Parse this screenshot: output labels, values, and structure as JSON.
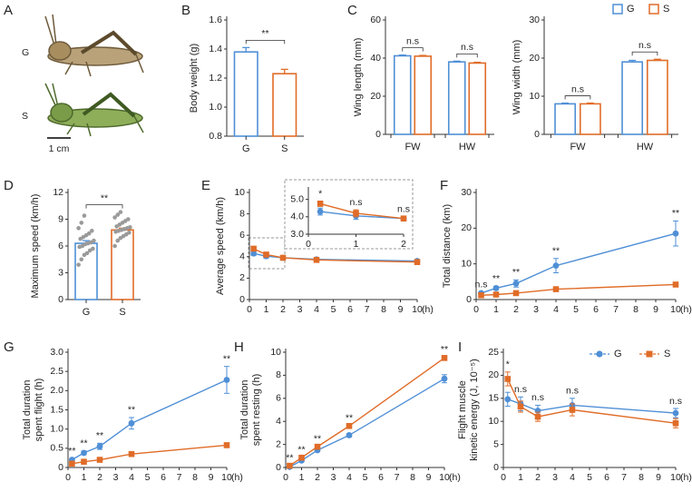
{
  "figure": {
    "panel_a": {
      "label": "A",
      "groups": [
        "G",
        "S"
      ],
      "scale_bar": "1 cm"
    }
  },
  "chart_data": [
    {
      "type": "bar",
      "panel": "B",
      "ylabel": [
        "Body weight (g)"
      ],
      "categories": [
        "G",
        "S"
      ],
      "values": [
        1.38,
        1.23
      ],
      "errors": [
        0.03,
        0.03
      ],
      "colors": [
        "#4f8fd6",
        "#e06c28"
      ],
      "ylim": [
        0.8,
        1.6
      ],
      "yticks": [
        0.8,
        {
          "value": 1,
          "label": "1.0"
        },
        1.2,
        1.4,
        1.6
      ],
      "annotation": "**"
    },
    {
      "type": "bar",
      "panel": "C",
      "ylabel": [
        "Wing length (mm)"
      ],
      "categories": [
        "FW",
        "HW"
      ],
      "series": [
        {
          "color": "#4f8fd6",
          "values": [
            41.2,
            38
          ],
          "errors": [
            0.4,
            0.4
          ]
        },
        {
          "color": "#e06c28",
          "values": [
            41,
            37.4
          ],
          "errors": [
            0.4,
            0.4
          ]
        }
      ],
      "ylim": [
        0,
        60
      ],
      "yticks": [
        0,
        20,
        40,
        60
      ],
      "annotations": [
        "n.s",
        "n.s"
      ]
    },
    {
      "type": "bar",
      "ylabel": [
        "Wing width (mm)"
      ],
      "categories": [
        "FW",
        "HW"
      ],
      "series": [
        {
          "name": "G",
          "color": "#4f8fd6",
          "values": [
            8,
            19
          ],
          "errors": [
            0.2,
            0.4
          ]
        },
        {
          "name": "S",
          "color": "#e06c28",
          "values": [
            8,
            19.4
          ],
          "errors": [
            0.2,
            0.3
          ]
        }
      ],
      "ylim": [
        0,
        30
      ],
      "yticks": [
        0,
        10,
        20,
        30
      ],
      "annotations": [
        "n.s",
        "n.s"
      ],
      "legend": "top-right"
    },
    {
      "type": "bar",
      "panel": "D",
      "ylabel": [
        "Maximum speed (km/h)"
      ],
      "categories": [
        "G",
        "S"
      ],
      "values": [
        6.3,
        7.8
      ],
      "errors": [
        0.3,
        0.2
      ],
      "colors": [
        "#4f8fd6",
        "#e06c28"
      ],
      "ylim": [
        0,
        12
      ],
      "yticks": [
        0,
        3,
        6,
        9,
        12
      ],
      "annotation": "**",
      "points": [
        [
          3.9,
          4.5,
          5.0,
          5.2,
          5.5,
          5.7,
          5.9,
          6.0,
          6.2,
          6.3,
          6.4,
          6.6,
          6.8,
          7.0,
          7.2,
          7.4,
          7.7,
          8.0,
          8.6,
          9.4
        ],
        [
          6.0,
          6.6,
          6.9,
          7.1,
          7.3,
          7.5,
          7.6,
          7.7,
          7.8,
          7.9,
          8.0,
          8.1,
          8.2,
          8.4,
          8.6,
          8.8,
          9.0,
          9.2,
          9.5,
          9.8
        ]
      ]
    },
    {
      "type": "line",
      "panel": "E",
      "ylabel": [
        "Average speed (km/h)"
      ],
      "x": [
        0.25,
        1,
        2,
        4,
        10
      ],
      "xlim": [
        0,
        10
      ],
      "xticks": [
        0,
        1,
        2,
        3,
        4,
        5,
        6,
        7,
        8,
        9,
        10
      ],
      "xunit": "(h)",
      "ylim": [
        0,
        10
      ],
      "yticks": [
        0,
        2,
        4,
        6,
        8,
        10
      ],
      "series": [
        {
          "color": "#4f8fd6",
          "marker": "circle",
          "values": [
            4.3,
            4.05,
            3.9,
            3.75,
            3.6
          ],
          "errors": [
            0.2,
            0.2,
            0.1,
            0.15,
            0.1
          ]
        },
        {
          "color": "#e06c28",
          "marker": "square",
          "values": [
            4.75,
            4.2,
            3.9,
            3.7,
            3.5
          ],
          "errors": [
            0.15,
            0.2,
            0.1,
            0.1,
            0.1
          ]
        }
      ]
    },
    {
      "type": "line",
      "x": [
        0.25,
        1,
        2
      ],
      "xlim": [
        0,
        2
      ],
      "xticks": [
        0,
        1,
        2
      ],
      "ylim": [
        3,
        5.5
      ],
      "yticks": [
        {
          "value": 3,
          "label": "3.0"
        },
        {
          "value": 4,
          "label": "4.0"
        },
        {
          "value": 5,
          "label": "5.0"
        }
      ],
      "series": [
        {
          "color": "#4f8fd6",
          "marker": "circle",
          "values": [
            4.3,
            4.05,
            3.9
          ],
          "errors": [
            0.2,
            0.2,
            0.1
          ]
        },
        {
          "color": "#e06c28",
          "marker": "square",
          "values": [
            4.75,
            4.2,
            3.9
          ],
          "errors": [
            0.15,
            0.2,
            0.1
          ]
        }
      ],
      "annotations": [
        "*",
        "n.s",
        "n.s"
      ]
    },
    {
      "type": "line",
      "panel": "F",
      "ylabel": [
        "Total distance (km)"
      ],
      "x": [
        0.25,
        1,
        2,
        4,
        10
      ],
      "xlim": [
        0,
        10
      ],
      "xticks": [
        0,
        1,
        2,
        3,
        4,
        5,
        6,
        7,
        8,
        9,
        10
      ],
      "xunit": "(h)",
      "ylim": [
        0,
        30
      ],
      "yticks": [
        0,
        10,
        20,
        30
      ],
      "series": [
        {
          "color": "#4f8fd6",
          "marker": "circle",
          "values": [
            1.8,
            3.2,
            4.5,
            9.5,
            18.5
          ],
          "errors": [
            0.3,
            0.5,
            1,
            2,
            3.5
          ]
        },
        {
          "color": "#e06c28",
          "marker": "square",
          "values": [
            1.2,
            1.4,
            1.8,
            2.9,
            4.2
          ],
          "errors": [
            0.2,
            0.2,
            0.3,
            0.3,
            0.4
          ]
        }
      ],
      "annotations": [
        "n.s",
        "**",
        "**",
        "**",
        "**"
      ]
    },
    {
      "type": "line",
      "panel": "G",
      "ylabel": [
        "Total duration",
        "spent flight (h)"
      ],
      "x": [
        0.25,
        1,
        2,
        4,
        10
      ],
      "xlim": [
        0,
        10
      ],
      "xticks": [
        0,
        1,
        2,
        3,
        4,
        5,
        6,
        7,
        8,
        9,
        10
      ],
      "xunit": "(h)",
      "ylim": [
        0,
        3
      ],
      "yticks": [
        0,
        0.5,
        {
          "value": 1,
          "label": "1.0"
        },
        1.5,
        {
          "value": 2,
          "label": "2.0"
        },
        2.5,
        {
          "value": 3,
          "label": "3.0"
        }
      ],
      "series": [
        {
          "color": "#4f8fd6",
          "marker": "circle",
          "values": [
            0.2,
            0.38,
            0.55,
            1.15,
            2.28
          ],
          "errors": [
            0.03,
            0.05,
            0.08,
            0.15,
            0.35
          ]
        },
        {
          "color": "#e06c28",
          "marker": "square",
          "values": [
            0.1,
            0.15,
            0.2,
            0.35,
            0.58
          ],
          "errors": [
            0.02,
            0.02,
            0.03,
            0.04,
            0.06
          ]
        }
      ],
      "annotations": [
        "**",
        "**",
        "**",
        "**",
        "**"
      ]
    },
    {
      "type": "line",
      "panel": "H",
      "ylabel": [
        "Total duration",
        "spent resting (h)"
      ],
      "x": [
        0.25,
        1,
        2,
        4,
        10
      ],
      "xlim": [
        0,
        10
      ],
      "xticks": [
        0,
        1,
        2,
        3,
        4,
        5,
        6,
        7,
        8,
        9,
        10
      ],
      "xunit": "(h)",
      "ylim": [
        0,
        10
      ],
      "yticks": [
        0,
        2,
        4,
        6,
        8,
        10
      ],
      "series": [
        {
          "color": "#4f8fd6",
          "marker": "circle",
          "values": [
            0.05,
            0.6,
            1.5,
            2.8,
            7.7
          ],
          "errors": [
            0.02,
            0.05,
            0.1,
            0.15,
            0.35
          ]
        },
        {
          "color": "#e06c28",
          "marker": "square",
          "values": [
            0.15,
            0.85,
            1.8,
            3.6,
            9.5
          ],
          "errors": [
            0.02,
            0.05,
            0.05,
            0.05,
            0.1
          ]
        }
      ],
      "annotations": [
        "**",
        "**",
        "**",
        "**",
        "**"
      ]
    },
    {
      "type": "line",
      "panel": "I",
      "ylabel": [
        "Flight muscle",
        "kinetic energy (J, 10⁻⁵)"
      ],
      "x": [
        0.25,
        1,
        2,
        4,
        10
      ],
      "xlim": [
        0,
        10
      ],
      "xticks": [
        0,
        1,
        2,
        3,
        4,
        5,
        6,
        7,
        8,
        9,
        10
      ],
      "xunit": "(h)",
      "ylim": [
        0,
        25
      ],
      "yticks": [
        0,
        5,
        10,
        15,
        20,
        25
      ],
      "series": [
        {
          "name": "G",
          "color": "#4f8fd6",
          "marker": "circle",
          "values": [
            14.8,
            13.8,
            12.3,
            13.5,
            11.8
          ],
          "errors": [
            1.5,
            1.5,
            1.2,
            1.5,
            1.0
          ]
        },
        {
          "name": "S",
          "color": "#e06c28",
          "marker": "square",
          "values": [
            19.2,
            13.2,
            11,
            12.5,
            9.6
          ],
          "errors": [
            1.5,
            1.2,
            1.0,
            1.3,
            1.0
          ]
        }
      ],
      "annotations": [
        "*",
        "n.s",
        "n.s",
        "n.s",
        "n.s"
      ],
      "legend": "top-right"
    }
  ]
}
